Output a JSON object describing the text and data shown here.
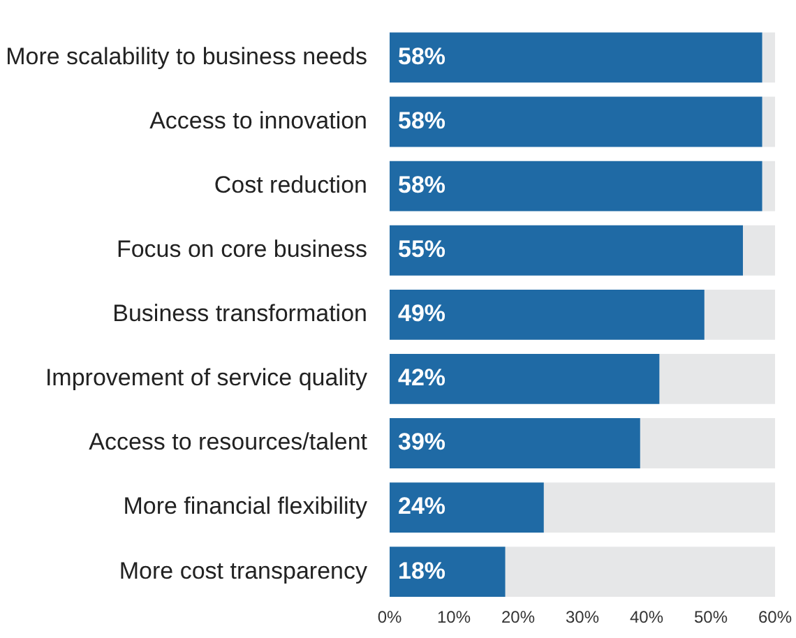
{
  "chart_data": {
    "type": "bar",
    "orientation": "horizontal",
    "stacked": true,
    "categories": [
      "More scalability to business needs",
      "Access to innovation",
      "Cost reduction",
      "Focus on core business",
      "Business transformation",
      "Improvement of service quality",
      "Access to resources/talent",
      "More financial flexibility",
      "More cost transparency"
    ],
    "series": [
      {
        "color": "#1f6aa5",
        "values": [
          58,
          58,
          58,
          55,
          49,
          42,
          39,
          24,
          18
        ],
        "value_labels": [
          "58%",
          "58%",
          "58%",
          "55%",
          "49%",
          "42%",
          "39%",
          "24%",
          "18%"
        ]
      },
      {
        "color": "#e6e7e8",
        "values": [
          2,
          2,
          2,
          5,
          11,
          18,
          21,
          36,
          42
        ]
      }
    ],
    "xlim": [
      0,
      60
    ],
    "xticks": [
      {
        "value": 0,
        "label": "0%"
      },
      {
        "value": 10,
        "label": "10%"
      },
      {
        "value": 20,
        "label": "20%"
      },
      {
        "value": 30,
        "label": "30%"
      },
      {
        "value": 40,
        "label": "40%"
      },
      {
        "value": 50,
        "label": "50%"
      },
      {
        "value": 60,
        "label": "60%"
      }
    ],
    "grid": false,
    "legend": false
  }
}
